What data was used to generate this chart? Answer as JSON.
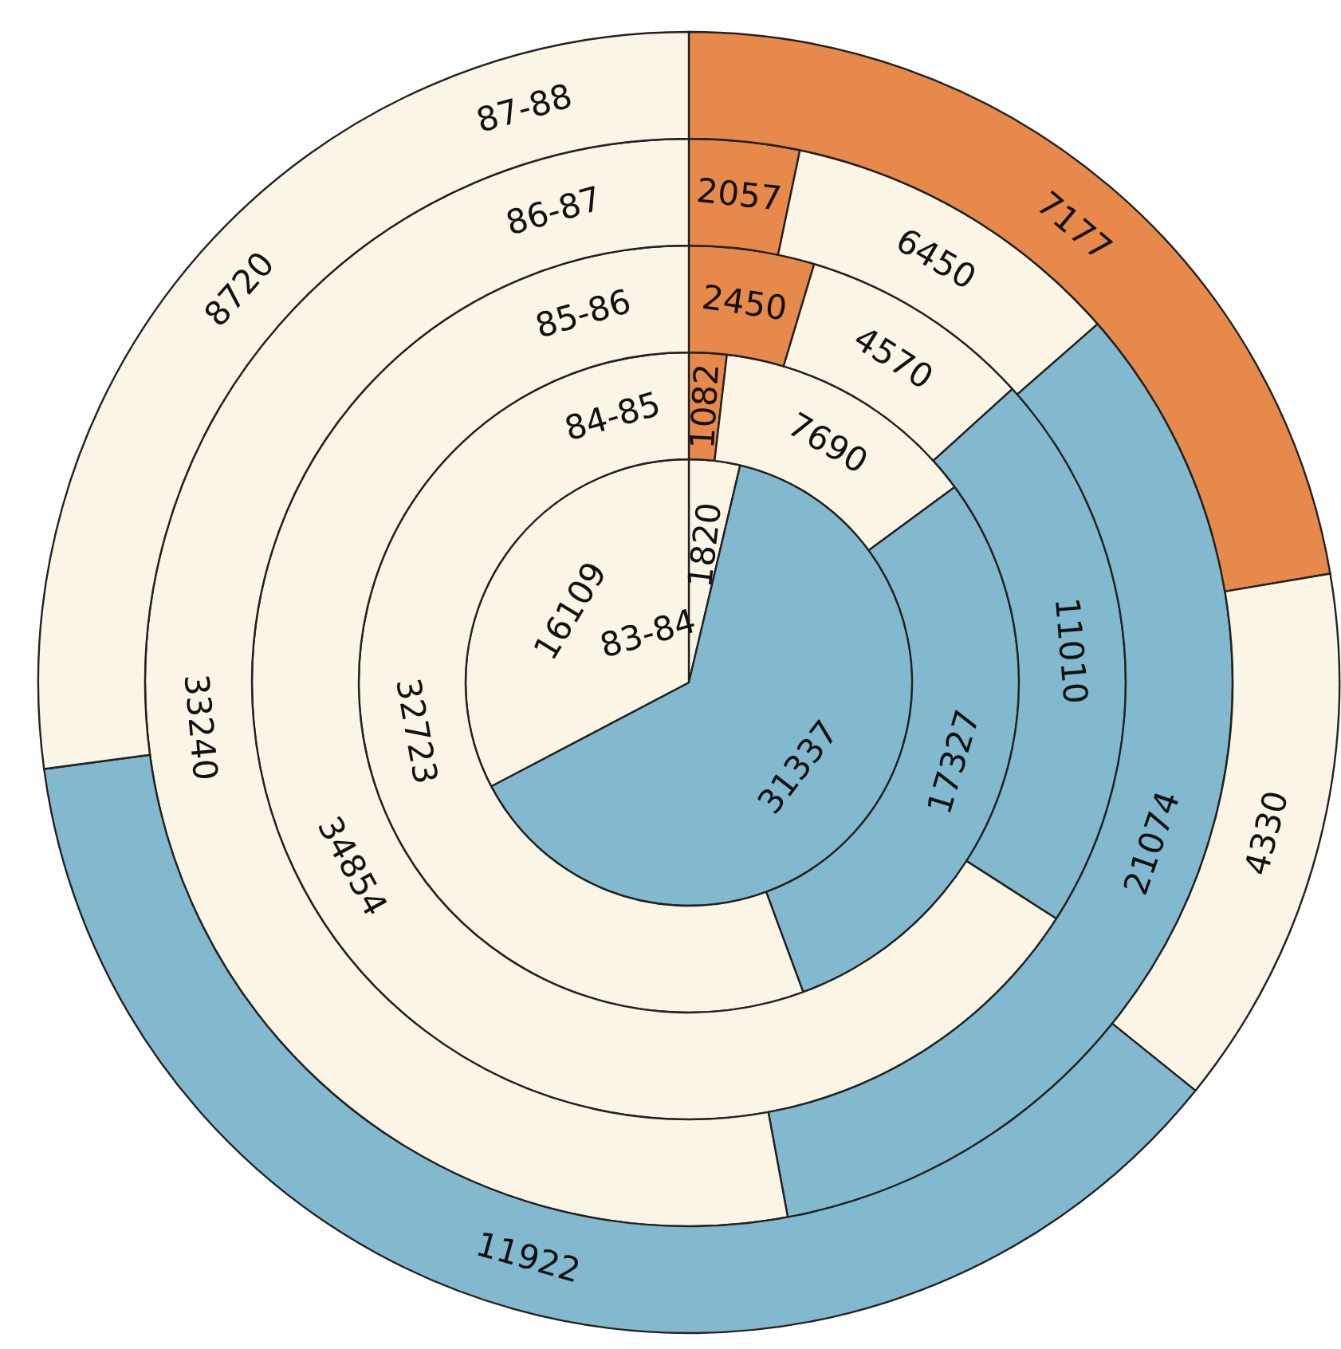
{
  "chart_data": {
    "type": "donut",
    "categories": [
      null,
      null,
      null,
      null
    ],
    "series": [
      {
        "name": "83-84",
        "values": [
          1820,
          null,
          31337,
          16109
        ],
        "colors": [
          "#fbf5e6",
          "#fbf5e6",
          "#82b9cf",
          "#fbf5e6"
        ]
      },
      {
        "name": "84-85",
        "values": [
          1082,
          7690,
          17327,
          32723
        ],
        "colors": [
          "#e8894c",
          "#fbf5e6",
          "#82b9cf",
          "#fbf5e6"
        ]
      },
      {
        "name": "85-86",
        "values": [
          2450,
          4570,
          11010,
          34854
        ],
        "colors": [
          "#e8894c",
          "#fbf5e6",
          "#82b9cf",
          "#fbf5e6"
        ]
      },
      {
        "name": "86-87",
        "values": [
          2057,
          6450,
          21074,
          33240
        ],
        "colors": [
          "#e8894c",
          "#fbf5e6",
          "#82b9cf",
          "#fbf5e6"
        ]
      },
      {
        "name": "87-88",
        "values": [
          7177,
          4330,
          11922,
          8720
        ],
        "colors": [
          "#e8894c",
          "#fbf5e6",
          "#82b9cf",
          "#fbf5e6"
        ]
      }
    ],
    "data_labels": true
  }
}
